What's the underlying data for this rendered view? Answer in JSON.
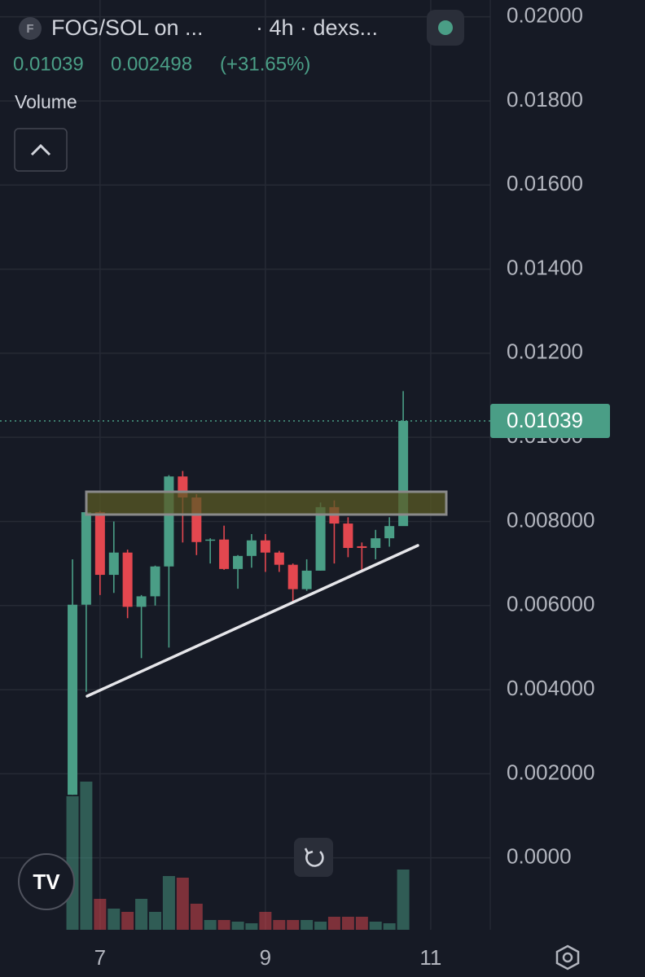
{
  "chart_data": {
    "type": "candlestick",
    "icon_letter": "F",
    "title": "FOG/SOL on ...",
    "subtitle": "· 4h · dexs...",
    "last_price": 0.01039,
    "change": "0.002498",
    "change_percent": "(+31.65%)",
    "volume_label": "Volume",
    "up_color": "#4a9e86",
    "down_color": "#e3474f",
    "grid": true,
    "x": [
      6.667,
      6.833,
      7,
      7.167,
      7.333,
      7.5,
      7.667,
      7.833,
      8,
      8.167,
      8.333,
      8.5,
      8.667,
      8.833,
      9,
      9.167,
      9.333,
      9.5,
      9.667,
      9.833,
      10,
      10.167,
      10.333,
      10.5,
      10.667
    ],
    "open": [
      0.0015,
      0.00602,
      0.00822,
      0.00673,
      0.00726,
      0.00597,
      0.00622,
      0.00693,
      0.00907,
      0.00857,
      0.00755,
      0.00757,
      0.00687,
      0.00718,
      0.00755,
      0.00726,
      0.00697,
      0.00639,
      0.00683,
      0.00834,
      0.00795,
      0.00741,
      0.00737,
      0.0076,
      0.00789
    ],
    "high": [
      0.0071,
      0.0083,
      0.00825,
      0.008,
      0.00733,
      0.00625,
      0.00695,
      0.0091,
      0.0092,
      0.00865,
      0.0076,
      0.0079,
      0.0072,
      0.0077,
      0.0077,
      0.0073,
      0.007,
      0.0071,
      0.00845,
      0.0085,
      0.0081,
      0.0075,
      0.0078,
      0.0081,
      0.0111
    ],
    "low": [
      0.0015,
      0.00395,
      0.00625,
      0.0063,
      0.0057,
      0.00475,
      0.006,
      0.005,
      0.0075,
      0.0072,
      0.007,
      0.00685,
      0.0064,
      0.0069,
      0.0068,
      0.0068,
      0.00605,
      0.00635,
      0.00683,
      0.007,
      0.00715,
      0.0068,
      0.0071,
      0.0074,
      0.0079
    ],
    "close": [
      0.00602,
      0.00822,
      0.00673,
      0.00726,
      0.00597,
      0.00622,
      0.00693,
      0.00907,
      0.00857,
      0.00751,
      0.00757,
      0.00687,
      0.00718,
      0.00755,
      0.00726,
      0.00697,
      0.00639,
      0.00683,
      0.00834,
      0.00795,
      0.00737,
      0.00737,
      0.0076,
      0.00789,
      0.01039
    ],
    "volume": [
      164,
      182,
      38,
      26,
      22,
      38,
      22,
      66,
      64,
      32,
      12,
      12,
      10,
      8,
      22,
      12,
      12,
      12,
      10,
      16,
      16,
      16,
      10,
      8,
      74
    ],
    "xlim": [
      5.79,
      11.72
    ],
    "xticks": [
      7,
      9,
      11
    ],
    "ylim": [
      -0.00171,
      0.0204
    ],
    "yticks": [
      {
        "value": 0.02,
        "label": "0.02000"
      },
      {
        "value": 0.018,
        "label": "0.01800"
      },
      {
        "value": 0.016,
        "label": "0.01600"
      },
      {
        "value": 0.014,
        "label": "0.01400"
      },
      {
        "value": 0.012,
        "label": "0.01200"
      },
      {
        "value": 0.01,
        "label": "0.01000"
      },
      {
        "value": 0.008,
        "label": "0.008000"
      },
      {
        "value": 0.006,
        "label": "0.006000"
      },
      {
        "value": 0.004,
        "label": "0.004000"
      },
      {
        "value": 0.002,
        "label": "0.002000"
      },
      {
        "value": 0,
        "label": "0.0000"
      }
    ]
  }
}
